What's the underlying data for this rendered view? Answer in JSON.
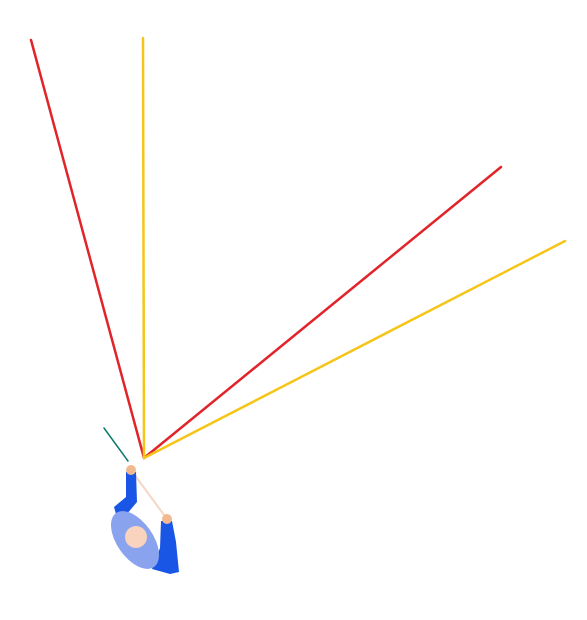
{
  "scene": {
    "description_type": "top-down player aiming diagram",
    "colors": {
      "background": "#ffffff",
      "outer_boundary_lines": "#e0242a",
      "inner_boundary_lines": "#f5c518",
      "aim_line": "#0a7a6e",
      "player_body": "#1a56e6",
      "player_torso": "#8aa3ee",
      "player_head": "#f9d3bd",
      "player_hands": "#f2b98f",
      "stick": "#f6d7c6"
    },
    "icons": {
      "player": "player-topdown-icon"
    }
  }
}
